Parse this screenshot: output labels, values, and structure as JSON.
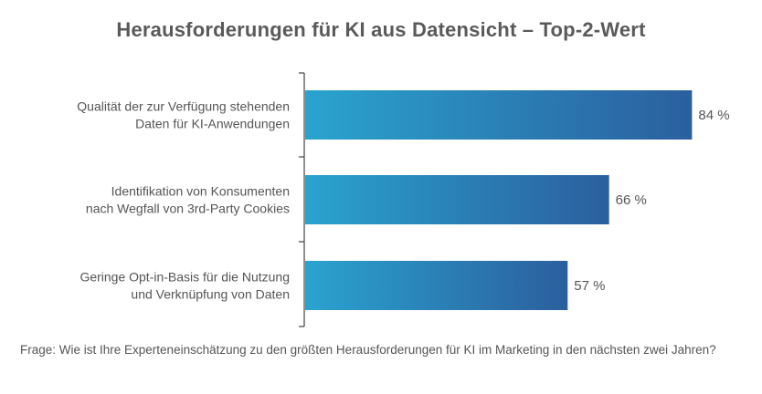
{
  "chart_data": {
    "type": "bar",
    "orientation": "horizontal",
    "title": "Herausforderungen für KI aus Datensicht – Top-2-Wert",
    "categories": [
      [
        "Qualität der zur Verfügung stehenden",
        "Daten für KI-Anwendungen"
      ],
      [
        "Identifikation von Konsumenten",
        "nach Wegfall von 3rd-Party Cookies"
      ],
      [
        "Geringe Opt-in-Basis für die Nutzung",
        "und Verknüpfung von Daten"
      ]
    ],
    "values": [
      84,
      66,
      57
    ],
    "value_labels": [
      "84 %",
      "66 %",
      "57 %"
    ],
    "unit": "%",
    "xlim": [
      0,
      100
    ],
    "grid": false,
    "legend": "none",
    "bar_gradient": [
      "#2aa3cf",
      "#2b5f9e"
    ],
    "axis_color": "#444444"
  },
  "footnote": "Frage: Wie ist Ihre Experteneinschätzung zu den größten Herausforderungen für KI im Marketing in den nächsten zwei Jahren?"
}
